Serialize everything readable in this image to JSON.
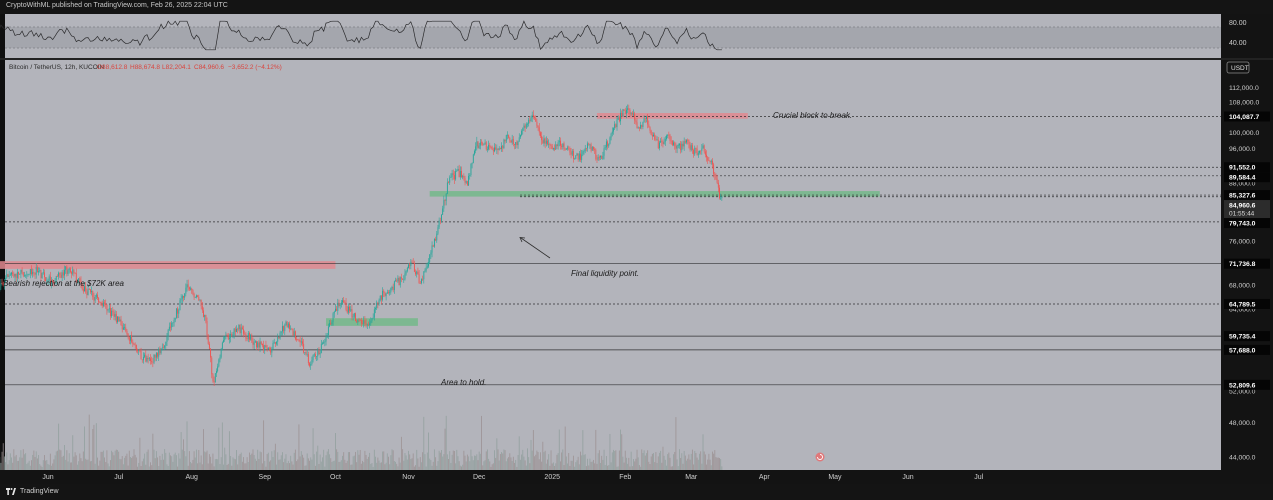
{
  "header": {
    "published_text": "CryptoWithML published on TradingView.com, Feb 26, 2025 22:04 UTC"
  },
  "footer": {
    "brand": "TradingView"
  },
  "chart_data": {
    "type": "candlestick",
    "symbol": "Bitcoin / TetherUS, 12h, KUCOIN",
    "ohlc_line": {
      "open": "O88,612.8",
      "high": "H88,674.8",
      "low": "L82,204.1",
      "close": "C84,960.6",
      "change": "−3,652.2 (−4.12%)"
    },
    "currency_badge": "USDT",
    "y_ticks": [
      "112,000.0",
      "108,000.0",
      "100,000.0",
      "96,000.0",
      "88,000.0",
      "84,000.0",
      "80,000.0",
      "76,000.0",
      "68,000.0",
      "64,000.0",
      "52,000.0",
      "48,000.0",
      "44,000.0"
    ],
    "x_ticks": [
      "Jun",
      "Jul",
      "Aug",
      "Sep",
      "Oct",
      "Nov",
      "Dec",
      "2025",
      "Feb",
      "Mar",
      "Apr",
      "May",
      "Jun",
      "Jul"
    ],
    "price_labels": [
      {
        "text": "104,087.7"
      },
      {
        "text": "91,552.0"
      },
      {
        "text": "89,584.4"
      },
      {
        "text": "85,327.6"
      },
      {
        "text": "84,960.6",
        "sub": "01:55:44"
      },
      {
        "text": "79,743.0"
      },
      {
        "text": "71,736.8"
      },
      {
        "text": "64,789.5"
      },
      {
        "text": "59,735.4"
      },
      {
        "text": "57,688.0"
      },
      {
        "text": "52,809.6"
      }
    ],
    "rsi": {
      "ticks": [
        "80.00",
        "40.00"
      ],
      "upper": 70,
      "lower": 30
    },
    "annotations": {
      "crucial_block": "Crucial block to break.",
      "final_liquidity": "Final liquidity point.",
      "bearish_rejection": "Bearish rejection at the $72K area",
      "area_to_hold": "Area to hold."
    },
    "zones": [
      {
        "kind": "resistance",
        "from": 103500,
        "to": 105000,
        "start": "Jan 20",
        "end": "Mar 25"
      },
      {
        "kind": "support",
        "from": 85000,
        "to": 86200,
        "start": "Nov 10",
        "end": "May 20"
      },
      {
        "kind": "resistance",
        "from": 70800,
        "to": 72200,
        "start": "May 10",
        "end": "Oct 1"
      },
      {
        "kind": "support",
        "from": 61300,
        "to": 62500,
        "start": "Sep 27",
        "end": "Nov 5"
      }
    ],
    "colors": {
      "up": "#26a69a",
      "down": "#ef5350",
      "background": "#b3b4bb",
      "resistance_zone": "#e0888f",
      "support_zone": "#73b889"
    }
  }
}
